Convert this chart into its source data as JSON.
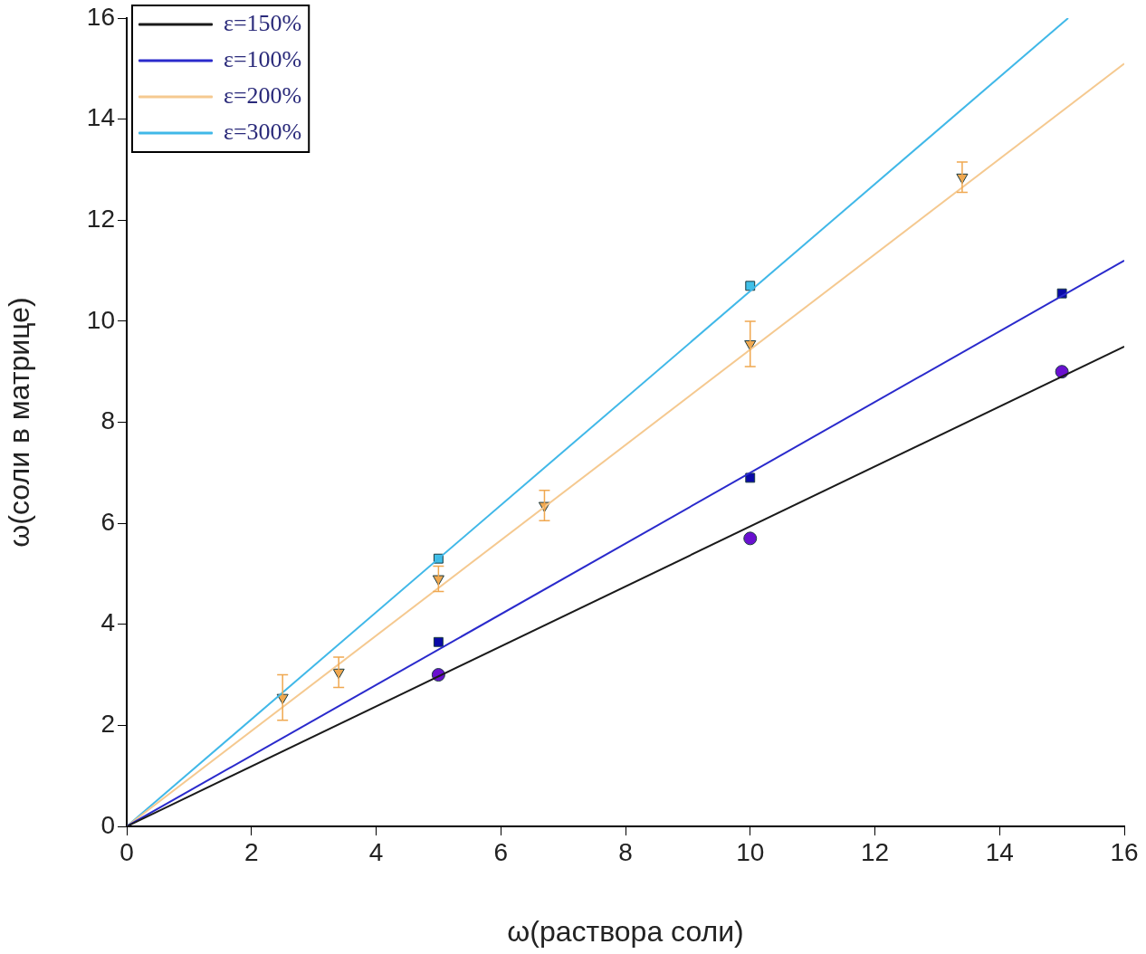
{
  "chart_data": {
    "type": "scatter",
    "xlabel": "ω(раствора соли)",
    "ylabel": "ω(соли в матрице)",
    "xlim": [
      0,
      16
    ],
    "ylim": [
      0,
      16
    ],
    "xticks": [
      0,
      2,
      4,
      6,
      8,
      10,
      12,
      14,
      16
    ],
    "yticks": [
      0,
      2,
      4,
      6,
      8,
      10,
      12,
      14,
      16
    ],
    "grid": false,
    "legend": "top left",
    "series": [
      {
        "type": "line",
        "name": "ε=150%",
        "color": "#1a1a1a",
        "x": [
          0,
          16
        ],
        "values": [
          0,
          9.5
        ],
        "marker": "none"
      },
      {
        "type": "line",
        "name": "ε=100%",
        "color": "#2a2acc",
        "x": [
          0,
          16
        ],
        "values": [
          0,
          11.2
        ],
        "marker": "none"
      },
      {
        "type": "line",
        "name": "ε=200%",
        "color": "#f5c990",
        "x": [
          0,
          16
        ],
        "values": [
          0,
          15.1
        ],
        "marker": "none"
      },
      {
        "type": "line",
        "name": "ε=300%",
        "color": "#40b8e8",
        "x": [
          0,
          15.1
        ],
        "values": [
          0,
          16
        ],
        "marker": "none"
      },
      {
        "type": "scatter",
        "color": "#6a10d0",
        "x": [
          5,
          10,
          15
        ],
        "values": [
          3.0,
          5.7,
          9.0
        ],
        "marker": "circle"
      },
      {
        "type": "scatter",
        "color": "#0a0aa8",
        "x": [
          5,
          10,
          15
        ],
        "values": [
          3.65,
          6.9,
          10.55
        ],
        "marker": "square"
      },
      {
        "type": "scatter",
        "color": "#f0a850",
        "x": [
          2.5,
          3.4,
          5,
          6.7,
          10,
          13.4
        ],
        "values": [
          2.55,
          3.05,
          4.9,
          6.35,
          9.55,
          12.85
        ],
        "errors": [
          0.45,
          0.3,
          0.25,
          0.3,
          0.45,
          0.3
        ],
        "marker": "triangle"
      },
      {
        "type": "scatter",
        "color": "#40c0e8",
        "x": [
          5,
          10
        ],
        "values": [
          5.3,
          10.7
        ],
        "marker": "square"
      }
    ]
  }
}
